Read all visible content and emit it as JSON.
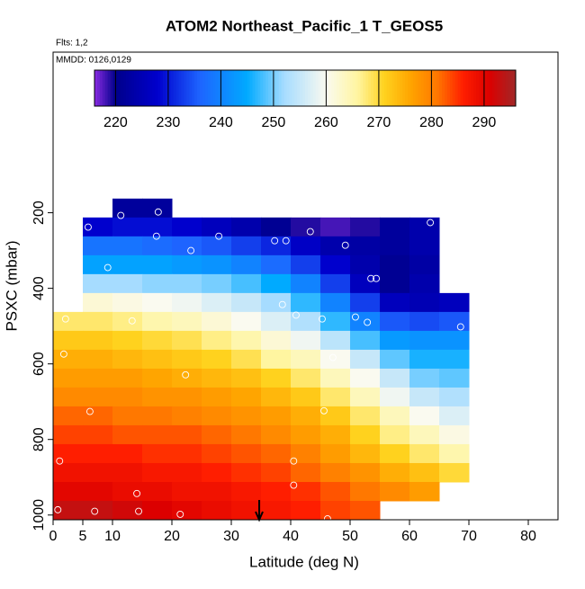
{
  "chart_data": {
    "type": "heatmap",
    "title": "ATOM2 Northeast_Pacific_1 T_GEOS5",
    "annotations": [
      "Flts: 1,2",
      "MMDD: 0126,0129"
    ],
    "x_label": "Latitude (deg N)",
    "y_label": "PSXC (mbar)",
    "xlim": [
      0,
      85
    ],
    "ylim": [
      1012.5,
      -225
    ],
    "xticks": [
      0,
      5,
      10,
      20,
      30,
      40,
      50,
      60,
      70,
      80
    ],
    "yticks": [
      200,
      400,
      600,
      800,
      1000
    ],
    "x_bins": [
      0,
      5,
      10,
      15,
      20,
      25,
      30,
      35,
      40,
      45,
      50,
      55,
      60,
      65,
      70
    ],
    "y_bins": [
      162.5,
      212.5,
      262.5,
      312.5,
      362.5,
      412.5,
      462.5,
      512.5,
      562.5,
      612.5,
      662.5,
      712.5,
      762.5,
      812.5,
      862.5,
      912.5,
      962.5,
      1012.5
    ],
    "values": [
      [
        null,
        null,
        222,
        222,
        null,
        null,
        null,
        null,
        null,
        null,
        null,
        null,
        null,
        null
      ],
      [
        null,
        228,
        229,
        229,
        228,
        226,
        224,
        221,
        219,
        218,
        219,
        222,
        224,
        null
      ],
      [
        null,
        238,
        238,
        237,
        236,
        235,
        233,
        231,
        227,
        224,
        223,
        222,
        224,
        null
      ],
      [
        null,
        244,
        244,
        244,
        243,
        242,
        240,
        237,
        233,
        228,
        224,
        221,
        223,
        null
      ],
      [
        null,
        252,
        252,
        251,
        251,
        250,
        248,
        245,
        240,
        233,
        226,
        221,
        224,
        null
      ],
      [
        null,
        262,
        261,
        260,
        259,
        257,
        255,
        252,
        247,
        240,
        233,
        226,
        225,
        226
      ],
      [
        268,
        268,
        267,
        265,
        264,
        262,
        260,
        257,
        253,
        247,
        240,
        235,
        234,
        235
      ],
      [
        272,
        272,
        271,
        270,
        269,
        267,
        265,
        262,
        259,
        254,
        248,
        243,
        242,
        242
      ],
      [
        275,
        275,
        274,
        273,
        272,
        271,
        269,
        266,
        264,
        260,
        255,
        249,
        246,
        246
      ],
      [
        277,
        277,
        277,
        276,
        275,
        274,
        273,
        271,
        268,
        264,
        260,
        255,
        250,
        249
      ],
      [
        279,
        279,
        279,
        278,
        278,
        277,
        276,
        274,
        272,
        268,
        264,
        259,
        255,
        253
      ],
      [
        282,
        282,
        281,
        281,
        280,
        279,
        278,
        277,
        275,
        272,
        268,
        264,
        260,
        257
      ],
      [
        284,
        284,
        283,
        283,
        283,
        282,
        281,
        279,
        277,
        275,
        271,
        267,
        264,
        261
      ],
      [
        286,
        286,
        286,
        285,
        285,
        284,
        283,
        282,
        280,
        277,
        274,
        271,
        268,
        265
      ],
      [
        288,
        288,
        288,
        287,
        287,
        286,
        285,
        284,
        282,
        280,
        278,
        275,
        273,
        270
      ],
      [
        290,
        290,
        289,
        289,
        288,
        288,
        287,
        286,
        285,
        283,
        281,
        279,
        277,
        null
      ],
      [
        293,
        293,
        292,
        291,
        290,
        289,
        288,
        287,
        286,
        284,
        283,
        null,
        null,
        null
      ]
    ],
    "points": {
      "x": [
        11.4,
        17.7,
        4.4,
        5.9,
        17.4,
        27.9,
        43.3,
        63.5,
        3.2,
        23.2,
        37.3,
        39.2,
        49.2,
        9.2,
        53.5,
        54.4,
        38.6,
        40.9,
        45.3,
        50.9,
        52.9,
        68.6,
        2.1,
        13.3,
        1.8,
        47.1,
        22.3,
        6.2,
        45.6,
        1.1,
        40.5,
        40.5,
        14.1,
        0.8,
        7.0,
        14.4,
        21.4,
        46.2,
        56.5
      ],
      "y": [
        207,
        198,
        238,
        238,
        262,
        262,
        250,
        226,
        274,
        300,
        274,
        274,
        286,
        345,
        374,
        374,
        443,
        471,
        481,
        476,
        490,
        502,
        481,
        486,
        574,
        583,
        629,
        726,
        724,
        857,
        857,
        921,
        943,
        986,
        990,
        990,
        998,
        1010,
        1002
      ]
    },
    "marker_x": 34.7,
    "colorbar": {
      "lim": [
        216,
        296
      ],
      "ticks": [
        220,
        230,
        240,
        250,
        260,
        270,
        280,
        290
      ],
      "stops": [
        216,
        220,
        228,
        236,
        245,
        252,
        260,
        266,
        271,
        276,
        281,
        286,
        291,
        296
      ],
      "colors": [
        "#8a2be2",
        "#00008b",
        "#0000cd",
        "#1e64ff",
        "#00aaff",
        "#a6dcff",
        "#fafaf0",
        "#fff5a0",
        "#ffd21e",
        "#ffa500",
        "#ff7800",
        "#ff1e00",
        "#dc0000",
        "#a02828"
      ]
    }
  }
}
